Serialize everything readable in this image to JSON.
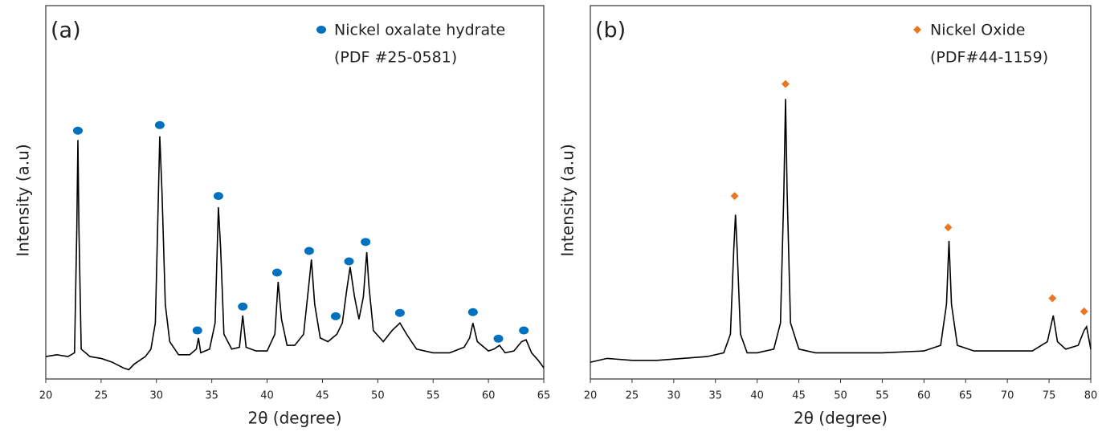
{
  "chart_data": [
    {
      "type": "line",
      "panel_label": "(a)",
      "xlabel": "2θ (degree)",
      "ylabel": "Intensity (a.u)",
      "legend_note": "(PDF #25-0581)",
      "xlim": [
        20,
        65
      ],
      "xticks": [
        20,
        25,
        30,
        35,
        40,
        45,
        50,
        55,
        60,
        65
      ],
      "ylim": [
        0,
        100
      ],
      "x": [
        20,
        21,
        22,
        22.6,
        22.8,
        22.9,
        23.0,
        23.2,
        24,
        25,
        26,
        27,
        27.5,
        28,
        29,
        29.5,
        29.9,
        30.1,
        30.3,
        30.5,
        30.8,
        31.2,
        32,
        33,
        33.6,
        33.8,
        34,
        34.8,
        35.3,
        35.6,
        35.8,
        36.1,
        36.8,
        37.5,
        37.8,
        38.1,
        39,
        40,
        40.7,
        41.0,
        41.3,
        41.8,
        42.5,
        43.3,
        43.8,
        44.0,
        44.3,
        44.8,
        45.5,
        46.3,
        46.8,
        47.2,
        47.5,
        47.9,
        48.3,
        48.7,
        49.0,
        49.2,
        49.6,
        50.5,
        51.3,
        52,
        52.6,
        53.5,
        55,
        56.5,
        57.8,
        58.3,
        58.6,
        59,
        60,
        60.5,
        61,
        61.5,
        62.3,
        63,
        63.4,
        63.9,
        64.5,
        65
      ],
      "series": [
        {
          "color": "#000000",
          "values": [
            6,
            6.5,
            6,
            7,
            40,
            64,
            40,
            8,
            6,
            5.5,
            4.5,
            3,
            2.5,
            4,
            6,
            8,
            15,
            40,
            65,
            50,
            20,
            10,
            6.5,
            6.5,
            8,
            11,
            7,
            8,
            15,
            46,
            35,
            12,
            8,
            8.5,
            17,
            8.5,
            7.5,
            7.5,
            12,
            26,
            16,
            9,
            9,
            12,
            26,
            32,
            20,
            11,
            10,
            12,
            15,
            24,
            30,
            22,
            16,
            22,
            34,
            25,
            13,
            10,
            13,
            15,
            12,
            8,
            7,
            7,
            8.5,
            11,
            15,
            10,
            7.5,
            8,
            9,
            7,
            7.5,
            10,
            10.5,
            7,
            5,
            3
          ]
        },
        {
          "name": "Nickel oxalate hydrate",
          "color": "#0070c0",
          "marker": "circle",
          "x": [
            22.9,
            30.3,
            33.7,
            35.6,
            37.8,
            40.9,
            43.8,
            46.2,
            47.4,
            48.9,
            52.0,
            58.6,
            60.9,
            63.2
          ],
          "values": [
            66.5,
            68,
            13,
            49,
            19.4,
            28.5,
            34.3,
            16.8,
            31.5,
            36.7,
            17.7,
            17.9,
            10.8,
            13
          ]
        }
      ]
    },
    {
      "type": "line",
      "panel_label": "(b)",
      "xlabel": "2θ (degree)",
      "ylabel": "Intensity (a.u)",
      "legend_note": "(PDF#44-1159)",
      "xlim": [
        20,
        80
      ],
      "xticks": [
        20,
        25,
        30,
        35,
        40,
        45,
        50,
        55,
        60,
        65,
        70,
        75,
        80
      ],
      "ylim": [
        0,
        100
      ],
      "x": [
        20,
        22,
        25,
        28,
        31,
        34,
        36,
        36.8,
        37.2,
        37.4,
        37.6,
        38,
        38.8,
        40,
        42,
        42.8,
        43.2,
        43.4,
        43.6,
        44,
        45,
        47,
        50,
        55,
        60,
        62,
        62.7,
        63,
        63.3,
        64,
        66,
        70,
        73,
        74.8,
        75.5,
        76,
        77,
        78.5,
        79.2,
        79.5,
        80
      ],
      "series": [
        {
          "color": "#000000",
          "values": [
            4.5,
            5.5,
            5,
            5,
            5.5,
            6,
            7,
            12,
            35,
            44,
            35,
            12,
            7,
            7,
            8,
            15,
            50,
            75,
            50,
            15,
            8,
            7,
            7,
            7,
            7.5,
            9,
            20,
            37,
            20,
            9,
            7.5,
            7.5,
            7.5,
            10,
            17,
            10,
            8,
            9,
            13,
            14,
            8
          ]
        },
        {
          "name": "Nickel Oxide",
          "color": "#e87722",
          "marker": "diamond",
          "x": [
            37.3,
            43.4,
            62.9,
            75.4,
            79.2
          ],
          "values": [
            49,
            79,
            40.6,
            21.6,
            18.1
          ]
        }
      ]
    }
  ]
}
